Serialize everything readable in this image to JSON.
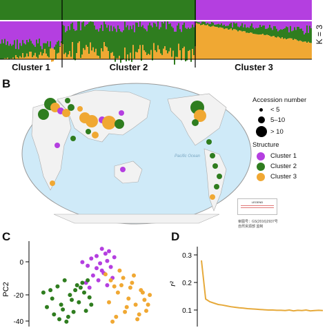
{
  "panels": {
    "A": {
      "k_label": "K = 3",
      "clusters": [
        "Cluster 1",
        "Cluster 2",
        "Cluster 3"
      ]
    },
    "B": {
      "label": "B",
      "legend": {
        "size_title": "Accession number",
        "sizes": [
          "< 5",
          "5–10",
          "> 10"
        ],
        "structure_title": "Structure",
        "structures": [
          "Cluster 1",
          "Cluster 2",
          "Cluster 3"
        ]
      },
      "map_box": {
        "title": "LEGEND",
        "lines": [
          "",
          "",
          ""
        ]
      },
      "credit_line1": "审图号：GS(2016)2937号",
      "credit_line2": "自然资源部 监制",
      "ocean_label": "Pacific Ocean"
    },
    "C": {
      "label": "C",
      "ylabel": "PC2",
      "yticks": [
        "0",
        "-20",
        "-40"
      ]
    },
    "D": {
      "label": "D",
      "ylabel": "r²",
      "yticks": [
        "0.3",
        "0.2",
        "0.1"
      ]
    }
  },
  "colors": {
    "cluster1": "#b43fe0",
    "cluster2": "#2f7d1f",
    "cluster3": "#f0a833",
    "land": "#f2f2f2",
    "ocean": "#cfeaf8",
    "ld_line": "#e6a93a"
  },
  "chart_data": [
    {
      "type": "scatter",
      "panel": "C",
      "ylabel": "PC2",
      "series": [
        {
          "name": "Cluster 1",
          "x": [
            -8,
            -5,
            -3,
            0,
            2,
            3,
            5,
            6,
            8,
            10,
            -2,
            1,
            4,
            7,
            -6,
            9,
            3,
            0,
            -4,
            6
          ],
          "y": [
            5,
            2,
            8,
            10,
            4,
            -2,
            12,
            6,
            1,
            9,
            -6,
            -10,
            -4,
            14,
            -12,
            -8,
            16,
            0,
            -16,
            -14
          ]
        },
        {
          "name": "Cluster 2",
          "x": [
            -30,
            -25,
            -22,
            -20,
            -18,
            -15,
            -12,
            -10,
            -8,
            -6,
            -4,
            -28,
            -24,
            -16,
            -14,
            -11,
            -7,
            -3,
            -26,
            -19,
            -13,
            -9,
            -21,
            -17,
            -5
          ],
          "y": [
            -20,
            -25,
            -15,
            -30,
            -10,
            -22,
            -18,
            -28,
            -12,
            -35,
            -24,
            -32,
            -38,
            -40,
            -26,
            -14,
            -20,
            -30,
            -18,
            -34,
            -36,
            -16,
            -42,
            -44,
            -10
          ]
        },
        {
          "name": "Cluster 3",
          "x": [
            5,
            8,
            10,
            12,
            15,
            18,
            20,
            22,
            25,
            28,
            30,
            7,
            11,
            14,
            17,
            21,
            24,
            27,
            9,
            13,
            16,
            19,
            23,
            26,
            29
          ],
          "y": [
            -5,
            -10,
            -15,
            -20,
            -8,
            -25,
            -12,
            -30,
            -18,
            -35,
            -22,
            -28,
            -40,
            -14,
            -32,
            -6,
            -38,
            -26,
            -44,
            -2,
            -36,
            -16,
            -42,
            -20,
            -30
          ]
        }
      ]
    },
    {
      "type": "line",
      "panel": "D",
      "ylabel": "r²",
      "ylim": [
        0.05,
        0.32
      ],
      "series": [
        {
          "name": "",
          "values": [
            0.28,
            0.14,
            0.13,
            0.125,
            0.12,
            0.118,
            0.115,
            0.112,
            0.11,
            0.108,
            0.107,
            0.105,
            0.104,
            0.103,
            0.102,
            0.101,
            0.1,
            0.1,
            0.099,
            0.099,
            0.098,
            0.1,
            0.097,
            0.099,
            0.098,
            0.1,
            0.097,
            0.098,
            0.099,
            0.098
          ]
        }
      ]
    }
  ]
}
